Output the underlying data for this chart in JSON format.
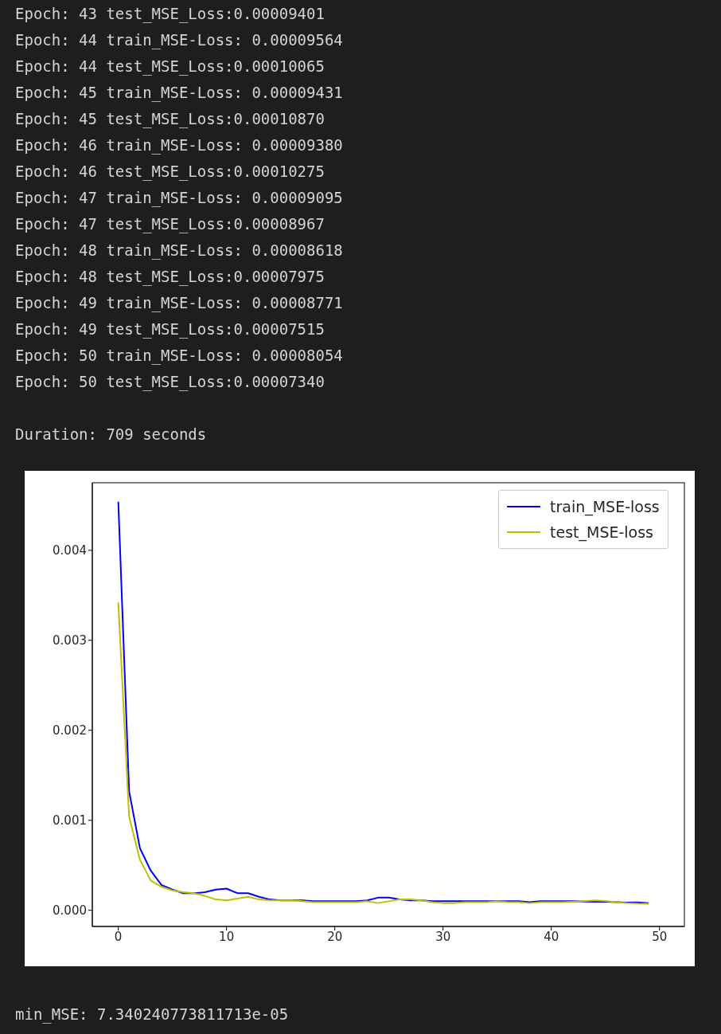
{
  "chart_data": {
    "type": "line",
    "x": [
      0,
      1,
      2,
      3,
      4,
      5,
      6,
      7,
      8,
      9,
      10,
      11,
      12,
      13,
      14,
      15,
      16,
      17,
      18,
      19,
      20,
      21,
      22,
      23,
      24,
      25,
      26,
      27,
      28,
      29,
      30,
      31,
      32,
      33,
      34,
      35,
      36,
      37,
      38,
      39,
      40,
      41,
      42,
      43,
      44,
      45,
      46,
      47,
      48,
      49
    ],
    "series": [
      {
        "name": "train_MSE-loss",
        "color": "#0000ff",
        "values": [
          0.00454,
          0.00132,
          0.00069,
          0.00044,
          0.00028,
          0.00023,
          0.00019,
          0.00019,
          0.0002,
          0.00023,
          0.00024,
          0.00019,
          0.00019,
          0.00015,
          0.00012,
          0.00011,
          0.00011,
          0.00011,
          0.0001,
          0.0001,
          0.0001,
          0.0001,
          0.0001,
          0.00011,
          0.00014,
          0.00014,
          0.00012,
          0.00011,
          0.00011,
          0.0001,
          0.0001,
          0.0001,
          0.0001,
          0.0001,
          0.0001,
          0.0001,
          0.0001,
          0.0001,
          9e-05,
          0.0001,
          0.0001,
          0.0001,
          0.0001,
          9.6e-05,
          9.4e-05,
          9.4e-05,
          9.1e-05,
          8.6e-05,
          8.8e-05,
          8e-05
        ]
      },
      {
        "name": "test_MSE-loss",
        "color": "#bfbf00",
        "values": [
          0.00342,
          0.00104,
          0.00056,
          0.00033,
          0.00026,
          0.00022,
          0.0002,
          0.00019,
          0.00016,
          0.00012,
          0.00011,
          0.00013,
          0.00015,
          0.00012,
          0.00011,
          0.00011,
          0.00011,
          0.0001,
          9e-05,
          9e-05,
          9e-05,
          9e-05,
          9e-05,
          0.0001,
          8e-05,
          0.0001,
          0.00012,
          0.00012,
          0.00011,
          9e-05,
          8e-05,
          8e-05,
          9e-05,
          9e-05,
          9e-05,
          0.0001,
          9e-05,
          9e-05,
          8e-05,
          9e-05,
          9e-05,
          9e-05,
          9.4e-05,
          0.0001,
          0.000109,
          0.000103,
          9e-05,
          8e-05,
          7.5e-05,
          7.3e-05
        ]
      }
    ],
    "xlim": [
      -2.4,
      52.3
    ],
    "xticks": [
      0,
      10,
      20,
      30,
      40,
      50
    ],
    "ylim": [
      -0.00018,
      0.00475
    ],
    "yticks": [
      {
        "value": 0,
        "label": "0.000"
      },
      {
        "value": 0.001,
        "label": "0.001"
      },
      {
        "value": 0.002,
        "label": "0.002"
      },
      {
        "value": 0.003,
        "label": "0.003"
      },
      {
        "value": 0.004,
        "label": "0.004"
      }
    ],
    "legend": "top right",
    "marker": "none",
    "line_style": "solid",
    "annotations": [
      "Epoch: 43 test_MSE_Loss:0.00009401",
      "Epoch: 44 train_MSE-Loss: 0.00009564",
      "Epoch: 44 test_MSE_Loss:0.00010065",
      "Epoch: 45 train_MSE-Loss: 0.00009431",
      "Epoch: 45 test_MSE_Loss:0.00010870",
      "Epoch: 46 train_MSE-Loss: 0.00009380",
      "Epoch: 46 test_MSE_Loss:0.00010275",
      "Epoch: 47 train_MSE-Loss: 0.00009095",
      "Epoch: 47 test_MSE_Loss:0.00008967",
      "Epoch: 48 train_MSE-Loss: 0.00008618",
      "Epoch: 48 test_MSE_Loss:0.00007975",
      "Epoch: 49 train_MSE-Loss: 0.00008771",
      "Epoch: 49 test_MSE_Loss:0.00007515",
      "Epoch: 50 train_MSE-Loss: 0.00008054",
      "Epoch: 50 test_MSE_Loss:0.00007340",
      "Duration: 709 seconds",
      "min_MSE: 7.340240773811713e-05"
    ]
  }
}
